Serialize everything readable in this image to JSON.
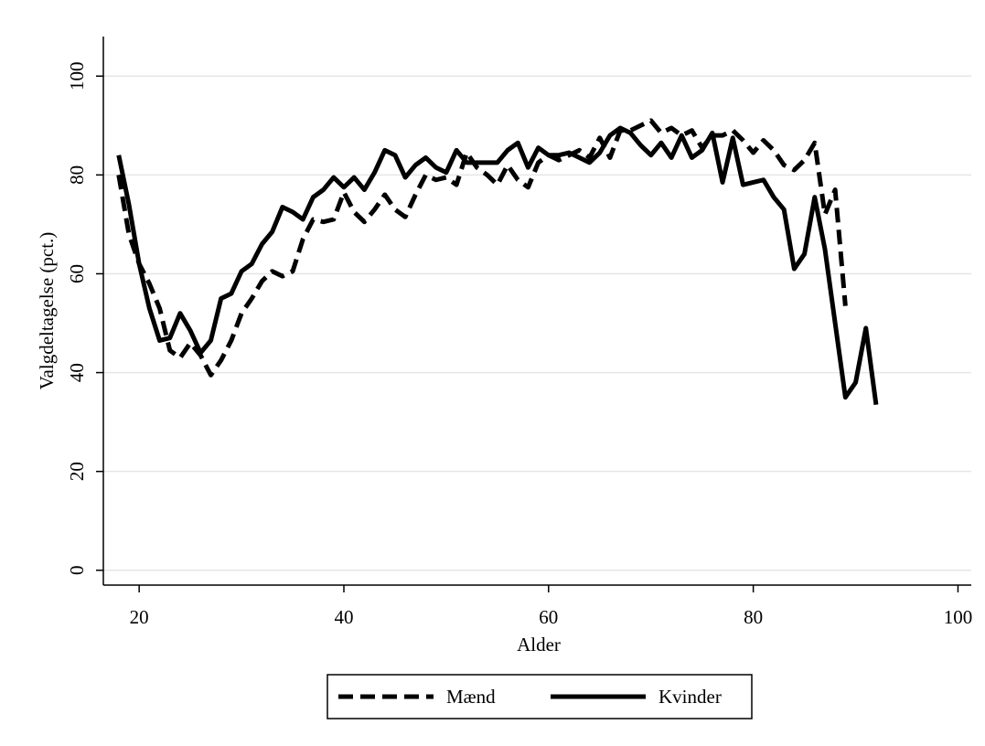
{
  "chart_data": {
    "type": "line",
    "x_label": "Alder",
    "y_label": "Valgdeltagelse (pct.)",
    "x": [
      18,
      19,
      20,
      21,
      22,
      23,
      24,
      25,
      26,
      27,
      28,
      29,
      30,
      31,
      32,
      33,
      34,
      35,
      36,
      37,
      38,
      39,
      40,
      41,
      42,
      43,
      44,
      45,
      46,
      47,
      48,
      49,
      50,
      51,
      52,
      53,
      54,
      55,
      56,
      57,
      58,
      59,
      60,
      61,
      62,
      63,
      64,
      65,
      66,
      67,
      68,
      69,
      70,
      71,
      72,
      73,
      74,
      75,
      76,
      77,
      78,
      79,
      80,
      81,
      82,
      83,
      84,
      85,
      86,
      87,
      88,
      89,
      90,
      91,
      92
    ],
    "series": [
      {
        "name": "Mænd",
        "color": "#000000",
        "dash": true,
        "values": [
          80,
          68,
          62,
          58,
          53,
          44.5,
          43,
          46,
          43.5,
          39.5,
          42.5,
          46.5,
          52,
          55,
          58.5,
          60.5,
          59.5,
          60.5,
          67,
          71,
          70.5,
          71,
          76.5,
          72.5,
          70.5,
          73,
          76,
          73,
          71.5,
          76,
          80,
          79,
          79.5,
          78,
          84.5,
          81.5,
          80,
          78,
          82,
          79,
          77.5,
          82.5,
          84,
          83,
          84,
          85,
          83.5,
          87.5,
          83.5,
          89,
          89,
          90,
          91,
          88.5,
          89.5,
          88,
          89,
          85.5,
          88,
          88,
          89,
          87,
          84.5,
          87,
          85,
          82,
          81,
          83,
          86.5,
          72,
          77,
          53.5,
          null,
          null,
          null
        ]
      },
      {
        "name": "Kvinder",
        "color": "#000000",
        "dash": false,
        "values": [
          84,
          74,
          62,
          53,
          46.5,
          47,
          52,
          48.5,
          44,
          46.5,
          55,
          56,
          60.5,
          62,
          66,
          68.5,
          73.5,
          72.5,
          71,
          75.5,
          77,
          79.5,
          77.5,
          79.5,
          77,
          80.5,
          85,
          84,
          79.5,
          82,
          83.5,
          81.5,
          80.5,
          85,
          82.5,
          82.5,
          82.5,
          82.5,
          85,
          86.5,
          81.5,
          85.5,
          84,
          84,
          84.5,
          83.5,
          82.5,
          84.5,
          88,
          89.5,
          88.5,
          86,
          84,
          86.5,
          83.5,
          88,
          83.5,
          85,
          88.5,
          78.5,
          87.5,
          78,
          78.5,
          79,
          75.5,
          73,
          61,
          64,
          75.5,
          65,
          50,
          35,
          38,
          49,
          33.5
        ]
      }
    ],
    "xlim": [
      16.5,
      101.3
    ],
    "ylim": [
      -3,
      108
    ],
    "xticks": [
      20,
      40,
      60,
      80,
      100
    ],
    "yticks": [
      0,
      20,
      40,
      60,
      80,
      100
    ],
    "grid": true,
    "legend": "bottom"
  }
}
